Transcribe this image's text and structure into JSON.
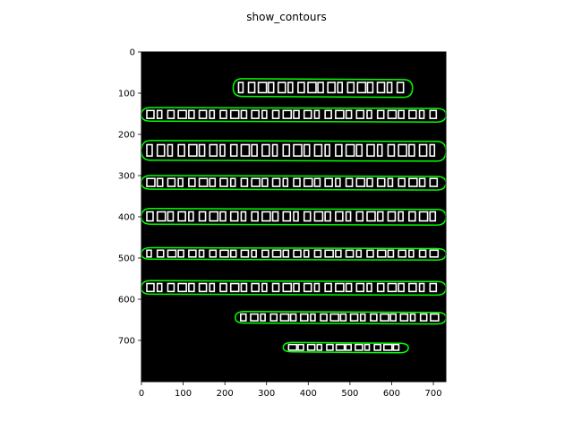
{
  "chart_data": {
    "type": "image",
    "title": "show_contours",
    "xlabel": "",
    "ylabel": "",
    "xlim": [
      0,
      730
    ],
    "ylim": [
      800,
      0
    ],
    "xticks": [
      0,
      100,
      200,
      300,
      400,
      500,
      600,
      700
    ],
    "yticks": [
      0,
      100,
      200,
      300,
      400,
      500,
      600,
      700
    ],
    "grid": false,
    "colors": {
      "background": "#000000",
      "ink": "#ffffff",
      "contour": "#00ff00"
    },
    "contours": [
      {
        "name": "line-1",
        "x": [
          220,
          650
        ],
        "y": [
          65,
          110
        ]
      },
      {
        "name": "line-2",
        "x": [
          0,
          730
        ],
        "y": [
          135,
          170
        ]
      },
      {
        "name": "line-3",
        "x": [
          0,
          730
        ],
        "y": [
          215,
          265
        ]
      },
      {
        "name": "line-4",
        "x": [
          0,
          730
        ],
        "y": [
          300,
          335
        ]
      },
      {
        "name": "line-5",
        "x": [
          0,
          730
        ],
        "y": [
          380,
          420
        ]
      },
      {
        "name": "line-6",
        "x": [
          0,
          730
        ],
        "y": [
          475,
          505
        ]
      },
      {
        "name": "line-7",
        "x": [
          0,
          730
        ],
        "y": [
          555,
          590
        ]
      },
      {
        "name": "line-8",
        "x": [
          225,
          730
        ],
        "y": [
          630,
          660
        ]
      },
      {
        "name": "line-9",
        "x": [
          340,
          640
        ],
        "y": [
          705,
          730
        ]
      }
    ]
  }
}
